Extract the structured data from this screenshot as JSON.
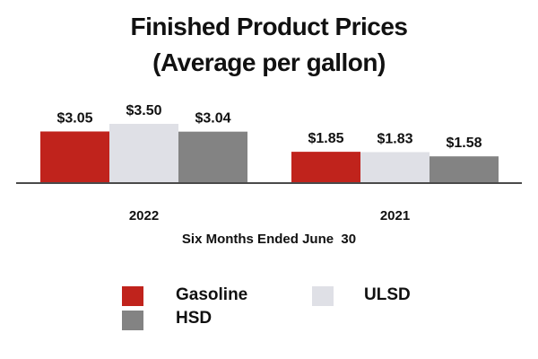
{
  "chart_data": {
    "type": "bar",
    "title_lines": [
      "Finished Product Prices",
      "(Average per gallon)"
    ],
    "categories": [
      "2022",
      "2021"
    ],
    "series": [
      {
        "name": "Gasoline",
        "values": [
          3.05,
          1.85
        ],
        "labels": [
          "$3.05",
          "$1.85"
        ],
        "color": "#c0231c"
      },
      {
        "name": "ULSD",
        "values": [
          3.5,
          1.83
        ],
        "labels": [
          "$3.50",
          "$1.83"
        ],
        "color": "#dfe0e6"
      },
      {
        "name": "HSD",
        "values": [
          3.04,
          1.58
        ],
        "labels": [
          "$3.04",
          "$1.58"
        ],
        "color": "#838383"
      }
    ],
    "xlabel": "Six Months Ended June  30",
    "ylabel": "",
    "ylim": [
      0,
      3.5
    ],
    "legend_position": "bottom"
  }
}
